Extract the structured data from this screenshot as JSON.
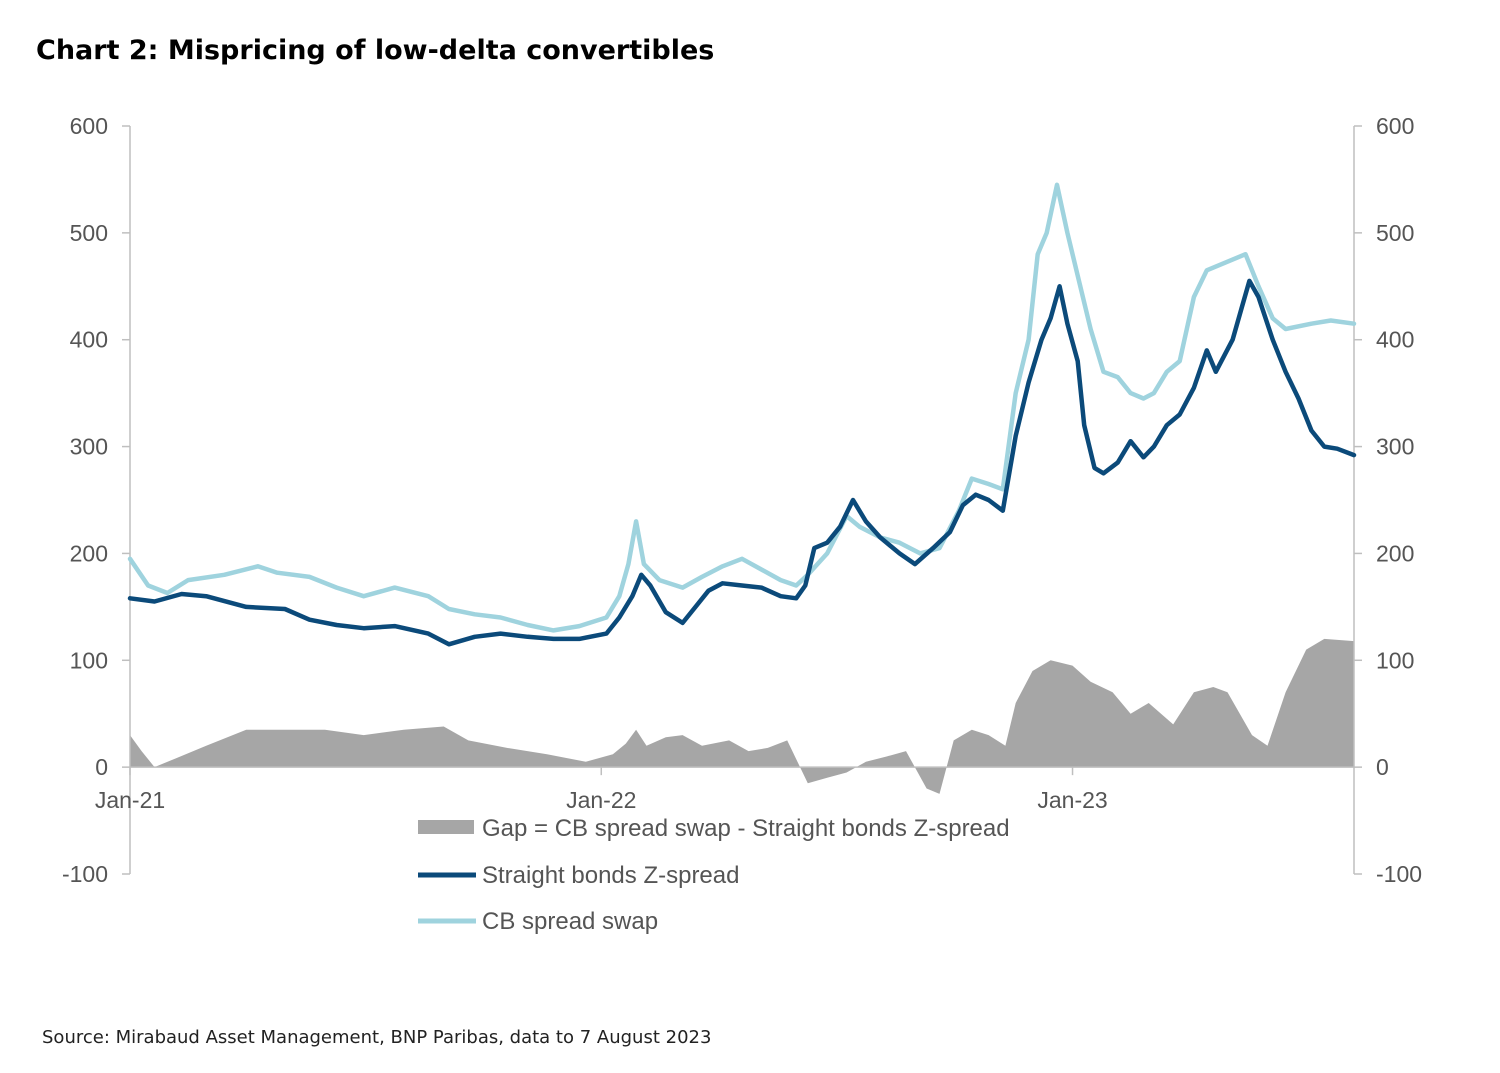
{
  "chart_data": {
    "type": "line",
    "title": "Chart 2: Mispricing of low-delta convertibles",
    "source": "Source: Mirabaud Asset Management, BNP Paribas, data to 7 August 2023",
    "x_start": "2021-01-01",
    "x_end": "2023-08-07",
    "x_tick_labels": [
      {
        "label": "Jan-21",
        "date": "2021-01-01"
      },
      {
        "label": "Jan-22",
        "date": "2022-01-01"
      },
      {
        "label": "Jan-23",
        "date": "2023-01-01"
      }
    ],
    "y_left": {
      "ticks": [
        "600",
        "500",
        "400",
        "300",
        "200",
        "100",
        "0",
        "-100"
      ],
      "range": [
        -100,
        600
      ]
    },
    "y_right": {
      "ticks": [
        "600",
        "500",
        "400",
        "300",
        "200",
        "100",
        "0",
        "-100"
      ],
      "range": [
        -100,
        600
      ]
    },
    "legend": [
      {
        "key": "gap",
        "label": "Gap = CB spread swap - Straight bonds Z-spread",
        "style": "area"
      },
      {
        "key": "straight",
        "label": "Straight bonds Z-spread",
        "style": "line"
      },
      {
        "key": "cb",
        "label": "CB spread swap",
        "style": "line"
      }
    ],
    "colors": {
      "gap": "#a6a6a6",
      "straight": "#0b4a7a",
      "cb": "#9fd3de",
      "axis": "#bfbfbf"
    },
    "series": [
      {
        "key": "straight",
        "name": "Straight bonds Z-spread",
        "points": [
          [
            "2021-01-01",
            158
          ],
          [
            "2021-01-20",
            155
          ],
          [
            "2021-02-10",
            162
          ],
          [
            "2021-03-01",
            160
          ],
          [
            "2021-04-01",
            150
          ],
          [
            "2021-05-01",
            148
          ],
          [
            "2021-05-20",
            138
          ],
          [
            "2021-06-10",
            133
          ],
          [
            "2021-07-01",
            130
          ],
          [
            "2021-07-25",
            132
          ],
          [
            "2021-08-20",
            125
          ],
          [
            "2021-09-05",
            115
          ],
          [
            "2021-09-25",
            122
          ],
          [
            "2021-10-15",
            125
          ],
          [
            "2021-11-05",
            122
          ],
          [
            "2021-11-25",
            120
          ],
          [
            "2021-12-15",
            120
          ],
          [
            "2022-01-05",
            125
          ],
          [
            "2022-01-15",
            140
          ],
          [
            "2022-01-25",
            160
          ],
          [
            "2022-02-01",
            180
          ],
          [
            "2022-02-08",
            170
          ],
          [
            "2022-02-20",
            145
          ],
          [
            "2022-03-05",
            135
          ],
          [
            "2022-03-15",
            150
          ],
          [
            "2022-03-25",
            165
          ],
          [
            "2022-04-05",
            172
          ],
          [
            "2022-04-20",
            170
          ],
          [
            "2022-05-05",
            168
          ],
          [
            "2022-05-20",
            160
          ],
          [
            "2022-06-01",
            158
          ],
          [
            "2022-06-08",
            170
          ],
          [
            "2022-06-15",
            205
          ],
          [
            "2022-06-25",
            210
          ],
          [
            "2022-07-05",
            225
          ],
          [
            "2022-07-15",
            250
          ],
          [
            "2022-07-25",
            230
          ],
          [
            "2022-08-05",
            215
          ],
          [
            "2022-08-20",
            200
          ],
          [
            "2022-09-01",
            190
          ],
          [
            "2022-09-15",
            205
          ],
          [
            "2022-09-28",
            220
          ],
          [
            "2022-10-08",
            245
          ],
          [
            "2022-10-18",
            255
          ],
          [
            "2022-10-28",
            250
          ],
          [
            "2022-11-08",
            240
          ],
          [
            "2022-11-18",
            310
          ],
          [
            "2022-11-28",
            360
          ],
          [
            "2022-12-08",
            400
          ],
          [
            "2022-12-15",
            420
          ],
          [
            "2022-12-22",
            450
          ],
          [
            "2022-12-28",
            415
          ],
          [
            "2023-01-05",
            380
          ],
          [
            "2023-01-10",
            320
          ],
          [
            "2023-01-18",
            280
          ],
          [
            "2023-01-25",
            275
          ],
          [
            "2023-02-05",
            285
          ],
          [
            "2023-02-15",
            305
          ],
          [
            "2023-02-25",
            290
          ],
          [
            "2023-03-05",
            300
          ],
          [
            "2023-03-15",
            320
          ],
          [
            "2023-03-25",
            330
          ],
          [
            "2023-04-05",
            355
          ],
          [
            "2023-04-15",
            390
          ],
          [
            "2023-04-22",
            370
          ],
          [
            "2023-05-05",
            400
          ],
          [
            "2023-05-12",
            430
          ],
          [
            "2023-05-18",
            455
          ],
          [
            "2023-05-25",
            440
          ],
          [
            "2023-06-05",
            400
          ],
          [
            "2023-06-15",
            370
          ],
          [
            "2023-06-25",
            345
          ],
          [
            "2023-07-05",
            315
          ],
          [
            "2023-07-15",
            300
          ],
          [
            "2023-07-25",
            298
          ],
          [
            "2023-08-07",
            292
          ]
        ]
      },
      {
        "key": "cb",
        "name": "CB spread swap",
        "points": [
          [
            "2021-01-01",
            195
          ],
          [
            "2021-01-15",
            170
          ],
          [
            "2021-01-30",
            163
          ],
          [
            "2021-02-15",
            175
          ],
          [
            "2021-03-15",
            180
          ],
          [
            "2021-04-10",
            188
          ],
          [
            "2021-04-25",
            182
          ],
          [
            "2021-05-20",
            178
          ],
          [
            "2021-06-10",
            168
          ],
          [
            "2021-07-01",
            160
          ],
          [
            "2021-07-25",
            168
          ],
          [
            "2021-08-20",
            160
          ],
          [
            "2021-09-05",
            148
          ],
          [
            "2021-09-25",
            143
          ],
          [
            "2021-10-15",
            140
          ],
          [
            "2021-11-05",
            133
          ],
          [
            "2021-11-25",
            128
          ],
          [
            "2021-12-15",
            132
          ],
          [
            "2022-01-05",
            140
          ],
          [
            "2022-01-15",
            160
          ],
          [
            "2022-01-22",
            190
          ],
          [
            "2022-01-28",
            230
          ],
          [
            "2022-02-03",
            190
          ],
          [
            "2022-02-15",
            175
          ],
          [
            "2022-03-05",
            168
          ],
          [
            "2022-03-20",
            178
          ],
          [
            "2022-04-05",
            188
          ],
          [
            "2022-04-20",
            195
          ],
          [
            "2022-05-05",
            185
          ],
          [
            "2022-05-20",
            175
          ],
          [
            "2022-06-01",
            170
          ],
          [
            "2022-06-10",
            180
          ],
          [
            "2022-06-25",
            200
          ],
          [
            "2022-07-10",
            235
          ],
          [
            "2022-07-20",
            225
          ],
          [
            "2022-08-05",
            215
          ],
          [
            "2022-08-20",
            210
          ],
          [
            "2022-09-05",
            200
          ],
          [
            "2022-09-20",
            205
          ],
          [
            "2022-10-05",
            240
          ],
          [
            "2022-10-15",
            270
          ],
          [
            "2022-10-28",
            265
          ],
          [
            "2022-11-08",
            260
          ],
          [
            "2022-11-18",
            350
          ],
          [
            "2022-11-28",
            400
          ],
          [
            "2022-12-05",
            480
          ],
          [
            "2022-12-12",
            500
          ],
          [
            "2022-12-20",
            545
          ],
          [
            "2022-12-28",
            500
          ],
          [
            "2023-01-05",
            460
          ],
          [
            "2023-01-15",
            410
          ],
          [
            "2023-01-25",
            370
          ],
          [
            "2023-02-05",
            365
          ],
          [
            "2023-02-15",
            350
          ],
          [
            "2023-02-25",
            345
          ],
          [
            "2023-03-05",
            350
          ],
          [
            "2023-03-15",
            370
          ],
          [
            "2023-03-25",
            380
          ],
          [
            "2023-04-05",
            440
          ],
          [
            "2023-04-15",
            465
          ],
          [
            "2023-04-25",
            470
          ],
          [
            "2023-05-05",
            475
          ],
          [
            "2023-05-15",
            480
          ],
          [
            "2023-05-25",
            450
          ],
          [
            "2023-06-05",
            420
          ],
          [
            "2023-06-15",
            410
          ],
          [
            "2023-07-05",
            415
          ],
          [
            "2023-07-20",
            418
          ],
          [
            "2023-08-07",
            415
          ]
        ]
      },
      {
        "key": "gap",
        "name": "Gap = CB spread swap - Straight bonds Z-spread",
        "points": [
          [
            "2021-01-01",
            30
          ],
          [
            "2021-01-10",
            15
          ],
          [
            "2021-01-20",
            0
          ],
          [
            "2021-02-05",
            8
          ],
          [
            "2021-03-01",
            20
          ],
          [
            "2021-04-01",
            35
          ],
          [
            "2021-05-01",
            35
          ],
          [
            "2021-06-01",
            35
          ],
          [
            "2021-07-01",
            30
          ],
          [
            "2021-08-01",
            35
          ],
          [
            "2021-09-01",
            38
          ],
          [
            "2021-09-20",
            25
          ],
          [
            "2021-10-20",
            18
          ],
          [
            "2021-11-20",
            12
          ],
          [
            "2021-12-20",
            5
          ],
          [
            "2022-01-10",
            12
          ],
          [
            "2022-01-20",
            22
          ],
          [
            "2022-01-28",
            35
          ],
          [
            "2022-02-05",
            20
          ],
          [
            "2022-02-20",
            28
          ],
          [
            "2022-03-05",
            30
          ],
          [
            "2022-03-20",
            20
          ],
          [
            "2022-04-10",
            25
          ],
          [
            "2022-04-25",
            15
          ],
          [
            "2022-05-10",
            18
          ],
          [
            "2022-05-25",
            25
          ],
          [
            "2022-06-10",
            -15
          ],
          [
            "2022-06-25",
            -10
          ],
          [
            "2022-07-10",
            -5
          ],
          [
            "2022-07-25",
            5
          ],
          [
            "2022-08-10",
            10
          ],
          [
            "2022-08-25",
            15
          ],
          [
            "2022-09-10",
            -20
          ],
          [
            "2022-09-20",
            -25
          ],
          [
            "2022-10-01",
            25
          ],
          [
            "2022-10-15",
            35
          ],
          [
            "2022-10-28",
            30
          ],
          [
            "2022-11-10",
            20
          ],
          [
            "2022-11-18",
            60
          ],
          [
            "2022-12-01",
            90
          ],
          [
            "2022-12-15",
            100
          ],
          [
            "2023-01-01",
            95
          ],
          [
            "2023-01-15",
            80
          ],
          [
            "2023-02-01",
            70
          ],
          [
            "2023-02-15",
            50
          ],
          [
            "2023-03-01",
            60
          ],
          [
            "2023-03-20",
            40
          ],
          [
            "2023-04-05",
            70
          ],
          [
            "2023-04-20",
            75
          ],
          [
            "2023-05-01",
            70
          ],
          [
            "2023-05-20",
            30
          ],
          [
            "2023-06-01",
            20
          ],
          [
            "2023-06-15",
            70
          ],
          [
            "2023-07-01",
            110
          ],
          [
            "2023-07-15",
            120
          ],
          [
            "2023-08-07",
            118
          ]
        ]
      }
    ]
  }
}
